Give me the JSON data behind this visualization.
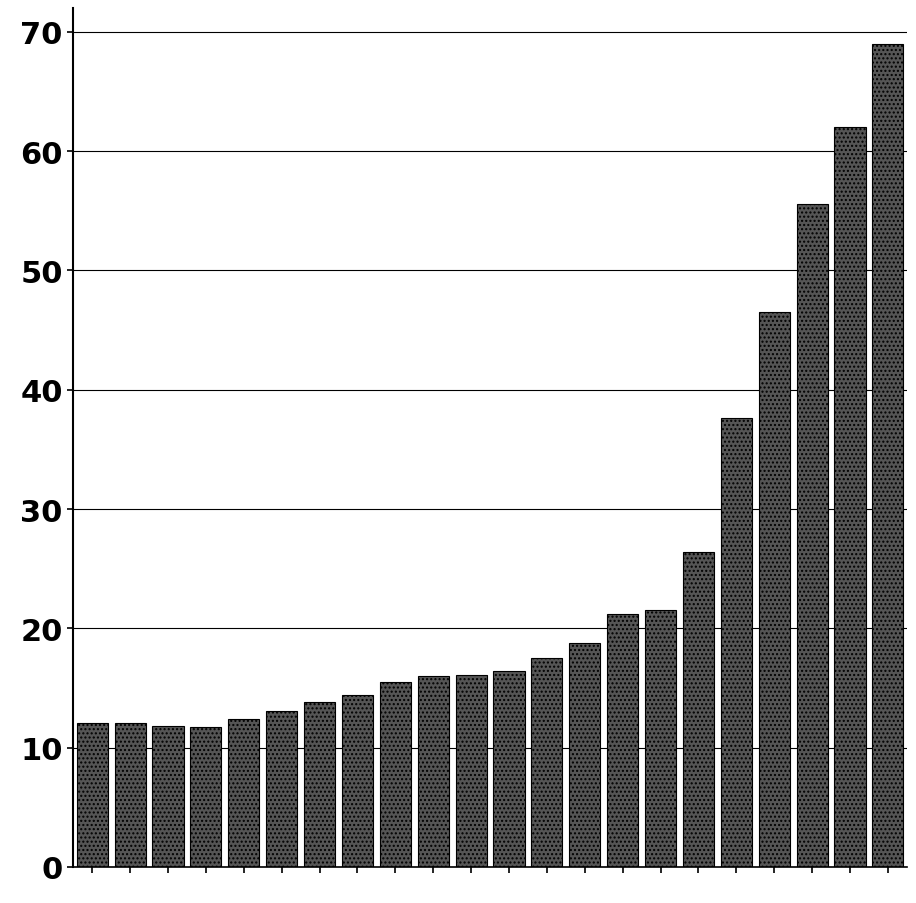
{
  "values": [
    12.1,
    12.1,
    11.8,
    11.7,
    12.4,
    13.1,
    13.8,
    14.4,
    15.5,
    16.0,
    16.1,
    16.4,
    17.5,
    18.8,
    21.2,
    21.5,
    26.4,
    37.6,
    46.5,
    55.6,
    62.0,
    69.0
  ],
  "bar_color": "#555555",
  "bar_edgecolor": "#000000",
  "ylim": [
    0,
    72
  ],
  "yticks": [
    0,
    10,
    20,
    30,
    40,
    50,
    60,
    70
  ],
  "ytick_fontsize": 22,
  "background_color": "#ffffff",
  "grid_color": "#000000",
  "bar_width": 0.82
}
